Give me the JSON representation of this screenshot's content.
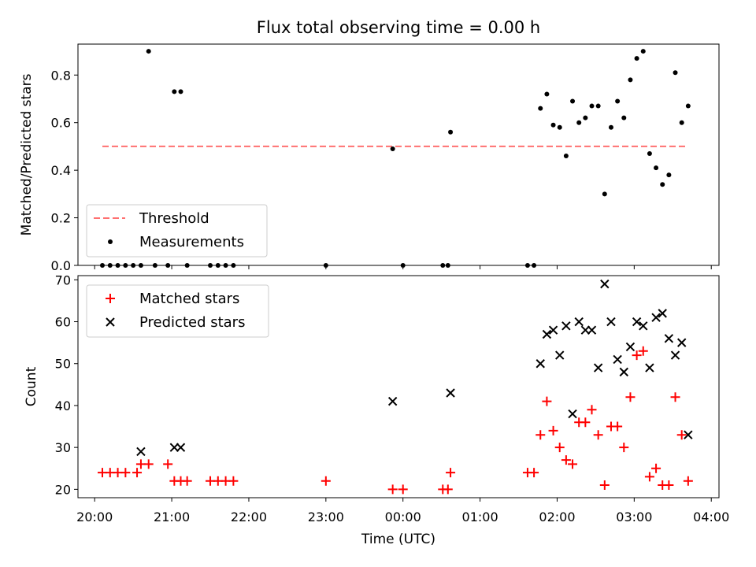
{
  "chart_data": {
    "type": "scatter",
    "title": "Flux total observing time = 0.00 h",
    "xlabel": "Time (UTC)",
    "x_ticks": [
      "20:00",
      "21:00",
      "22:00",
      "23:00",
      "00:00",
      "01:00",
      "02:00",
      "03:00",
      "04:00"
    ],
    "xlim": [
      "19:47",
      "04:06"
    ],
    "panels": [
      {
        "ylabel": "Matched/Predicted stars",
        "ylim": [
          0,
          0.93
        ],
        "y_ticks": [
          "0.0",
          "0.2",
          "0.4",
          "0.6",
          "0.8"
        ],
        "legend_position": "lower-left",
        "series": [
          {
            "name": "Threshold",
            "style": "dashed-line",
            "color": "#ff7070",
            "x": [
              "20:06",
              "03:42"
            ],
            "y": [
              0.5,
              0.5
            ]
          },
          {
            "name": "Measurements",
            "style": "dot",
            "color": "#000000",
            "x": [
              "20:06",
              "20:12",
              "20:18",
              "20:24",
              "20:30",
              "20:36",
              "20:42",
              "20:47",
              "20:57",
              "21:02",
              "21:07",
              "21:12",
              "21:30",
              "21:36",
              "21:42",
              "21:48",
              "23:00",
              "23:52",
              "00:00",
              "00:31",
              "00:35",
              "00:37",
              "01:37",
              "01:42",
              "01:47",
              "01:52",
              "01:57",
              "02:02",
              "02:07",
              "02:12",
              "02:17",
              "02:22",
              "02:27",
              "02:32",
              "02:37",
              "02:42",
              "02:47",
              "02:52",
              "02:57",
              "03:02",
              "03:07",
              "03:12",
              "03:17",
              "03:22",
              "03:27",
              "03:32",
              "03:37",
              "03:42"
            ],
            "y": [
              0,
              0,
              0,
              0,
              0,
              0,
              0.9,
              0,
              0,
              0.73,
              0.73,
              0,
              0,
              0,
              0,
              0,
              0,
              0.49,
              0,
              0,
              0,
              0.56,
              0,
              0,
              0.66,
              0.72,
              0.59,
              0.58,
              0.46,
              0.69,
              0.6,
              0.62,
              0.67,
              0.67,
              0.3,
              0.58,
              0.69,
              0.62,
              0.78,
              0.87,
              0.9,
              0.47,
              0.41,
              0.34,
              0.38,
              0.81,
              0.6,
              0.67
            ]
          }
        ]
      },
      {
        "ylabel": "Count",
        "ylim": [
          18,
          71
        ],
        "y_ticks": [
          "20",
          "30",
          "40",
          "50",
          "60",
          "70"
        ],
        "legend_position": "upper-left",
        "series": [
          {
            "name": "Matched stars",
            "marker": "+",
            "color": "#ff0000",
            "x": [
              "20:06",
              "20:12",
              "20:18",
              "20:24",
              "20:33",
              "20:36",
              "20:42",
              "20:57",
              "21:02",
              "21:07",
              "21:12",
              "21:30",
              "21:36",
              "21:42",
              "21:48",
              "23:00",
              "23:52",
              "00:00",
              "00:31",
              "00:35",
              "00:37",
              "01:37",
              "01:42",
              "01:47",
              "01:52",
              "01:57",
              "02:02",
              "02:07",
              "02:12",
              "02:17",
              "02:22",
              "02:27",
              "02:32",
              "02:37",
              "02:42",
              "02:47",
              "02:52",
              "02:57",
              "03:02",
              "03:07",
              "03:12",
              "03:17",
              "03:22",
              "03:27",
              "03:32",
              "03:37",
              "03:42"
            ],
            "y": [
              24,
              24,
              24,
              24,
              24,
              26,
              26,
              26,
              22,
              22,
              22,
              22,
              22,
              22,
              22,
              22,
              20,
              20,
              20,
              20,
              24,
              24,
              24,
              33,
              41,
              34,
              30,
              27,
              26,
              36,
              36,
              39,
              33,
              21,
              35,
              35,
              30,
              42,
              52,
              53,
              23,
              25,
              21,
              21,
              42,
              33,
              22
            ]
          },
          {
            "name": "Predicted stars",
            "marker": "x",
            "color": "#000000",
            "x": [
              "20:36",
              "21:02",
              "21:07",
              "23:52",
              "00:37",
              "01:47",
              "01:52",
              "01:57",
              "02:02",
              "02:07",
              "02:12",
              "02:17",
              "02:22",
              "02:27",
              "02:32",
              "02:37",
              "02:42",
              "02:47",
              "02:52",
              "02:57",
              "03:02",
              "03:07",
              "03:12",
              "03:17",
              "03:22",
              "03:27",
              "03:32",
              "03:37",
              "03:42"
            ],
            "y": [
              29,
              30,
              30,
              41,
              43,
              50,
              57,
              58,
              52,
              59,
              38,
              60,
              58,
              58,
              49,
              69,
              60,
              51,
              48,
              54,
              60,
              59,
              49,
              61,
              62,
              56,
              52,
              55,
              33
            ]
          }
        ]
      }
    ]
  }
}
